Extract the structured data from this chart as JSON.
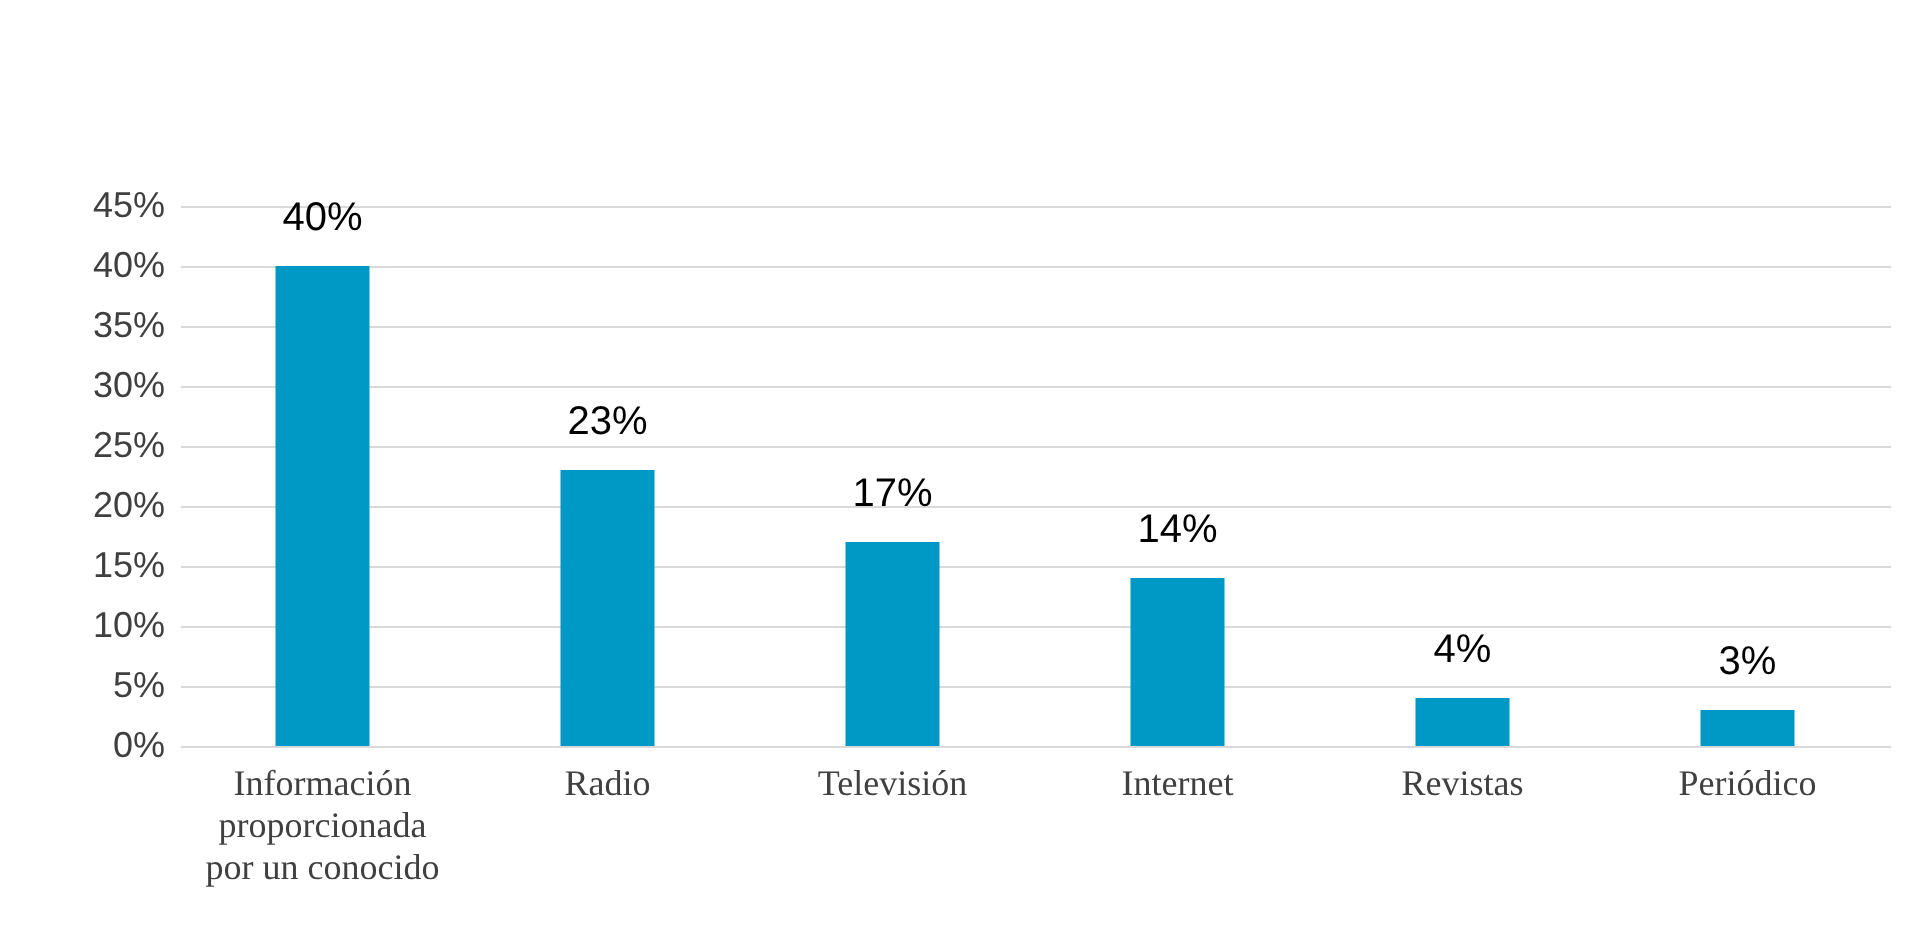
{
  "chart_data": {
    "type": "bar",
    "categories": [
      "Información proporcionada por un conocido",
      "Radio",
      "Televisión",
      "Internet",
      "Revistas",
      "Periódico"
    ],
    "values": [
      40,
      23,
      17,
      14,
      4,
      3
    ],
    "value_labels": [
      "40%",
      "23%",
      "17%",
      "14%",
      "4%",
      "3%"
    ],
    "color": "#0099c6",
    "ylim": [
      0,
      45
    ],
    "yticks": [
      {
        "value": 0,
        "label": "0%"
      },
      {
        "value": 5,
        "label": "5%"
      },
      {
        "value": 10,
        "label": "10%"
      },
      {
        "value": 15,
        "label": "15%"
      },
      {
        "value": 20,
        "label": "20%"
      },
      {
        "value": 25,
        "label": "25%"
      },
      {
        "value": 30,
        "label": "30%"
      },
      {
        "value": 35,
        "label": "35%"
      },
      {
        "value": 40,
        "label": "40%"
      },
      {
        "value": 45,
        "label": "45%"
      }
    ],
    "grid": "y"
  }
}
